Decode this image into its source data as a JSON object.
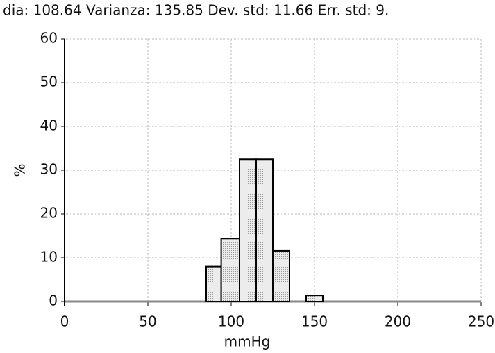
{
  "chart_data": {
    "type": "histogram",
    "title": "dia: 108.64  Varianza: 135.85  Dev. std: 11.66  Err. std: 9.",
    "x_label": "mmHg",
    "y_label": "%",
    "bins": [
      85,
      94,
      105,
      115,
      125,
      135,
      145,
      155
    ],
    "values": [
      8,
      14.4,
      32.5,
      32.5,
      11.6,
      0,
      1.4
    ],
    "color": "#e6e6e6",
    "xlim": [
      0,
      250
    ],
    "xticks": [
      0,
      50,
      100,
      150,
      200,
      250
    ],
    "ylim": [
      0,
      60
    ],
    "yticks": [
      0,
      10,
      20,
      30,
      40,
      50,
      60
    ],
    "grid": true
  }
}
